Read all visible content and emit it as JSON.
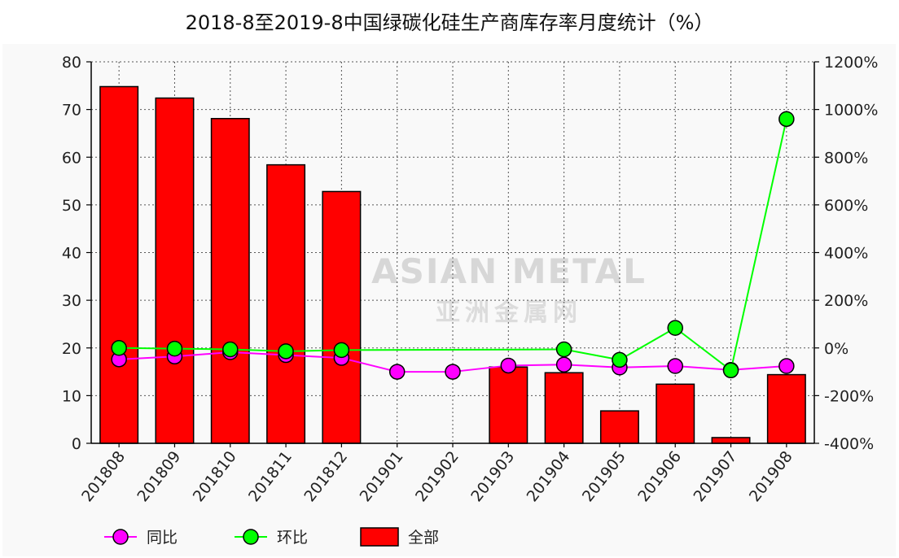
{
  "chart_data": {
    "type": "bar",
    "title": "2018-8至2019-8中国绿碳化硅生产商库存率月度统计（%）",
    "categories": [
      "201808",
      "201809",
      "201810",
      "201811",
      "201812",
      "201901",
      "201902",
      "201903",
      "201904",
      "201905",
      "201906",
      "201907",
      "201908"
    ],
    "series": [
      {
        "name": "全部",
        "type": "bar",
        "axis": "left",
        "color": "#ff0000",
        "values": [
          74.8,
          72.4,
          68.1,
          58.4,
          52.8,
          null,
          null,
          16.0,
          14.8,
          6.8,
          12.4,
          1.2,
          14.4
        ]
      },
      {
        "name": "同比",
        "type": "line",
        "axis": "right",
        "color": "#ff00ff",
        "values": [
          -48,
          -36,
          -18,
          -30,
          -42,
          -100,
          -100,
          -74,
          -70,
          -82,
          -76,
          -92,
          -76
        ]
      },
      {
        "name": "环比",
        "type": "line",
        "axis": "right",
        "color": "#00ff00",
        "values": [
          0,
          -3,
          -6,
          -14,
          -9,
          null,
          null,
          null,
          -6,
          -50,
          84,
          -94,
          960
        ]
      }
    ],
    "y_left": {
      "min": 0,
      "max": 80,
      "ticks": [
        "0",
        "10",
        "20",
        "30",
        "40",
        "50",
        "60",
        "70",
        "80"
      ]
    },
    "y_right": {
      "min": -400,
      "max": 1200,
      "ticks": [
        "-400%",
        "-200%",
        "0%",
        "200%",
        "400%",
        "600%",
        "800%",
        "1000%",
        "1200%"
      ]
    },
    "grid": true,
    "legend_position": "bottom",
    "watermark": {
      "en": "ASIAN METAL",
      "zh": "亚洲金属网"
    }
  }
}
